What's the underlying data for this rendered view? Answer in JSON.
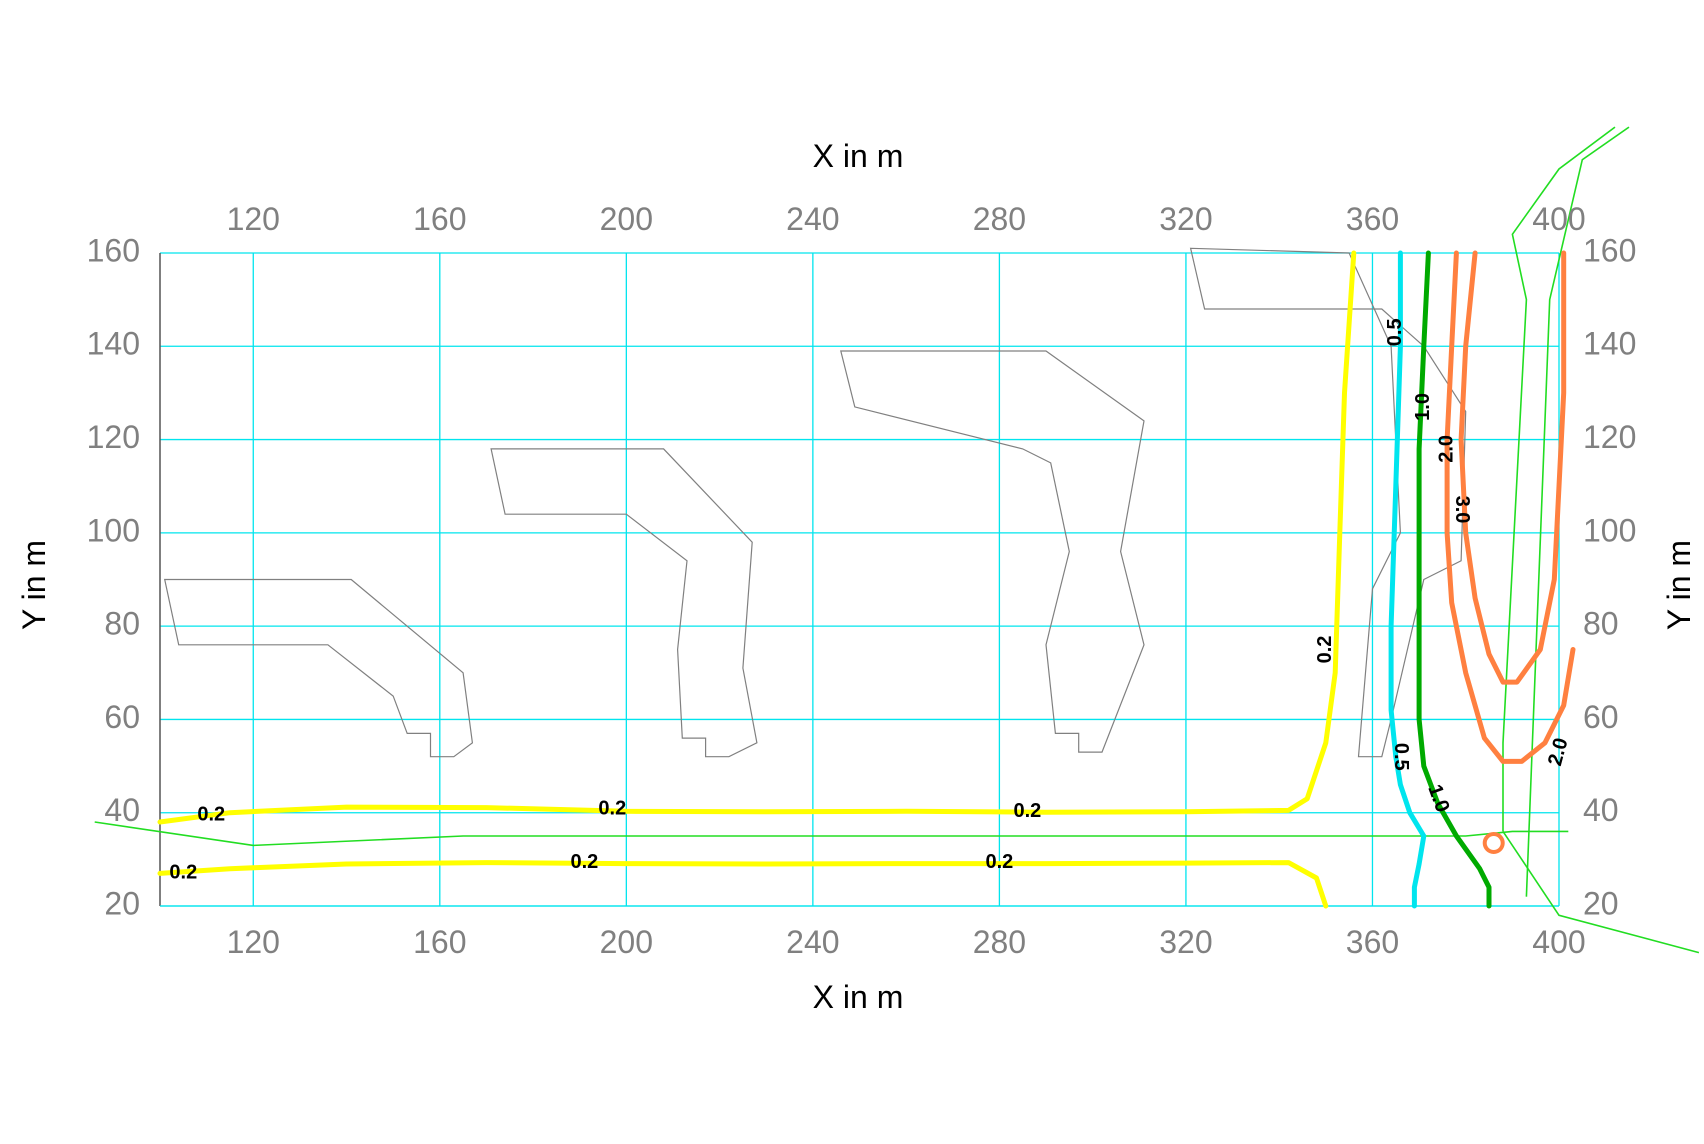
{
  "chart_data": {
    "type": "contour",
    "xlabel": "X in m",
    "ylabel": "Y in m",
    "xlim": [
      100,
      400
    ],
    "ylim": [
      20,
      160
    ],
    "x_ticks": [
      "120",
      "160",
      "200",
      "240",
      "280",
      "320",
      "360",
      "400"
    ],
    "y_ticks": [
      "20",
      "40",
      "60",
      "80",
      "100",
      "120",
      "140",
      "160"
    ],
    "grid": true,
    "colors": {
      "grid": "#00e5ee",
      "tick_text": "#808080",
      "building": "#808080",
      "road": "#22dd22",
      "level_0_2": "#ffff00",
      "level_0_5": "#00e5ee",
      "level_1_0": "#00aa00",
      "level_2_0": "#ff8040",
      "level_3_0": "#ff8040"
    },
    "buildings": [
      [
        [
          101,
          90
        ],
        [
          141,
          90
        ],
        [
          165,
          70
        ],
        [
          167,
          55
        ],
        [
          163,
          52
        ],
        [
          158,
          52
        ],
        [
          158,
          57
        ],
        [
          153,
          57
        ],
        [
          150,
          65
        ],
        [
          136,
          76
        ],
        [
          104,
          76
        ]
      ],
      [
        [
          171,
          118
        ],
        [
          208,
          118
        ],
        [
          227,
          98
        ],
        [
          225,
          71
        ],
        [
          228,
          55
        ],
        [
          222,
          52
        ],
        [
          217,
          52
        ],
        [
          217,
          56
        ],
        [
          212,
          56
        ],
        [
          211,
          75
        ],
        [
          213,
          94
        ],
        [
          200,
          104
        ],
        [
          174,
          104
        ]
      ],
      [
        [
          246,
          139
        ],
        [
          290,
          139
        ],
        [
          311,
          124
        ],
        [
          306,
          96
        ],
        [
          311,
          76
        ],
        [
          302,
          53
        ],
        [
          297,
          53
        ],
        [
          297,
          57
        ],
        [
          292,
          57
        ],
        [
          290,
          76
        ],
        [
          295,
          96
        ],
        [
          291,
          115
        ],
        [
          285,
          118
        ],
        [
          249,
          127
        ]
      ],
      [
        [
          321,
          161
        ],
        [
          355,
          160
        ],
        [
          364,
          140
        ],
        [
          366,
          100
        ],
        [
          360,
          88
        ],
        [
          357,
          52
        ],
        [
          362,
          52
        ],
        [
          364,
          60
        ],
        [
          371,
          90
        ],
        [
          379,
          94
        ],
        [
          380,
          126
        ],
        [
          371,
          140
        ],
        [
          362,
          148
        ],
        [
          324,
          148
        ]
      ]
    ],
    "roads": [
      [
        [
          86,
          38
        ],
        [
          120,
          33
        ],
        [
          165,
          35
        ],
        [
          270,
          35
        ],
        [
          380,
          35
        ],
        [
          390,
          36
        ],
        [
          402,
          36
        ]
      ],
      [
        [
          388,
          36
        ],
        [
          400,
          18
        ],
        [
          430,
          10
        ]
      ],
      [
        [
          388,
          36
        ],
        [
          388,
          55
        ],
        [
          393,
          150
        ],
        [
          390,
          164
        ],
        [
          400,
          178
        ],
        [
          412,
          187
        ]
      ],
      [
        [
          393,
          22
        ],
        [
          398,
          150
        ],
        [
          405,
          180
        ],
        [
          415,
          187
        ]
      ]
    ],
    "contours": [
      {
        "level": "0.2",
        "color": "level_0_2",
        "points": [
          [
            100,
            38
          ],
          [
            115,
            40
          ],
          [
            140,
            41.2
          ],
          [
            170,
            41.1
          ],
          [
            200,
            40.3
          ],
          [
            230,
            40.2
          ],
          [
            260,
            40.3
          ],
          [
            290,
            40.1
          ],
          [
            320,
            40.2
          ],
          [
            342,
            40.5
          ],
          [
            346,
            43
          ],
          [
            350,
            55
          ],
          [
            352,
            70
          ],
          [
            353,
            100
          ],
          [
            354,
            130
          ],
          [
            356,
            160
          ]
        ]
      },
      {
        "level": "0.2",
        "color": "level_0_2",
        "points": [
          [
            100,
            27
          ],
          [
            115,
            28
          ],
          [
            140,
            29
          ],
          [
            170,
            29.3
          ],
          [
            200,
            29.1
          ],
          [
            230,
            29.0
          ],
          [
            260,
            29.1
          ],
          [
            290,
            29.1
          ],
          [
            320,
            29.2
          ],
          [
            342,
            29.3
          ],
          [
            348,
            26
          ],
          [
            350,
            20
          ]
        ]
      },
      {
        "level": "0.5",
        "color": "level_0_5",
        "points": [
          [
            366,
            160
          ],
          [
            366,
            140
          ],
          [
            365,
            110
          ],
          [
            364,
            80
          ],
          [
            364,
            62
          ],
          [
            365,
            52
          ],
          [
            366,
            46
          ],
          [
            368,
            40
          ],
          [
            371,
            35
          ],
          [
            370,
            29
          ],
          [
            369,
            24
          ],
          [
            369,
            20
          ]
        ]
      },
      {
        "level": "1.0",
        "color": "level_1_0",
        "points": [
          [
            372,
            160
          ],
          [
            371,
            140
          ],
          [
            370,
            118
          ],
          [
            370,
            90
          ],
          [
            370,
            72
          ],
          [
            370,
            60
          ],
          [
            371,
            50
          ],
          [
            374,
            42
          ],
          [
            378,
            35
          ],
          [
            383,
            28
          ],
          [
            385,
            24
          ],
          [
            385,
            20
          ]
        ]
      },
      {
        "level": "2.0",
        "color": "level_2_0",
        "points": [
          [
            378,
            160
          ],
          [
            377,
            140
          ],
          [
            376,
            120
          ],
          [
            376,
            100
          ],
          [
            377,
            85
          ],
          [
            380,
            70
          ],
          [
            384,
            56
          ],
          [
            388,
            51
          ],
          [
            392,
            51
          ],
          [
            397,
            55
          ],
          [
            401,
            63
          ],
          [
            403,
            75
          ]
        ]
      },
      {
        "level": "3.0",
        "color": "level_3_0",
        "points": [
          [
            382,
            160
          ],
          [
            380,
            140
          ],
          [
            379,
            120
          ],
          [
            380,
            100
          ],
          [
            382,
            86
          ],
          [
            385,
            74
          ],
          [
            388,
            68
          ],
          [
            391,
            68
          ],
          [
            396,
            75
          ],
          [
            399,
            90
          ],
          [
            400,
            110
          ],
          [
            401,
            130
          ],
          [
            401,
            160
          ]
        ]
      }
    ],
    "contour_labels": [
      {
        "text": "0.2",
        "x": 111,
        "y": 39.5,
        "angle": 0
      },
      {
        "text": "0.2",
        "x": 105,
        "y": 27,
        "angle": 0
      },
      {
        "text": "0.2",
        "x": 197,
        "y": 40.7,
        "angle": 0
      },
      {
        "text": "0.2",
        "x": 191,
        "y": 29.3,
        "angle": 0
      },
      {
        "text": "0.2",
        "x": 286,
        "y": 40.2,
        "angle": 0
      },
      {
        "text": "0.2",
        "x": 280,
        "y": 29.3,
        "angle": 0
      },
      {
        "text": "0.2",
        "x": 350,
        "y": 75,
        "angle": -90
      },
      {
        "text": "0.5",
        "x": 365,
        "y": 143,
        "angle": -90
      },
      {
        "text": "0.5",
        "x": 366,
        "y": 52,
        "angle": 90
      },
      {
        "text": "1.0",
        "x": 371,
        "y": 127,
        "angle": -90
      },
      {
        "text": "1.0",
        "x": 374,
        "y": 43,
        "angle": 70
      },
      {
        "text": "2.0",
        "x": 376,
        "y": 118,
        "angle": -90
      },
      {
        "text": "3.0",
        "x": 379,
        "y": 105,
        "angle": 90
      },
      {
        "text": "2.0",
        "x": 400,
        "y": 53,
        "angle": -75
      }
    ],
    "source": {
      "x": 386,
      "y": 33.5,
      "color": "#ff8040"
    }
  }
}
